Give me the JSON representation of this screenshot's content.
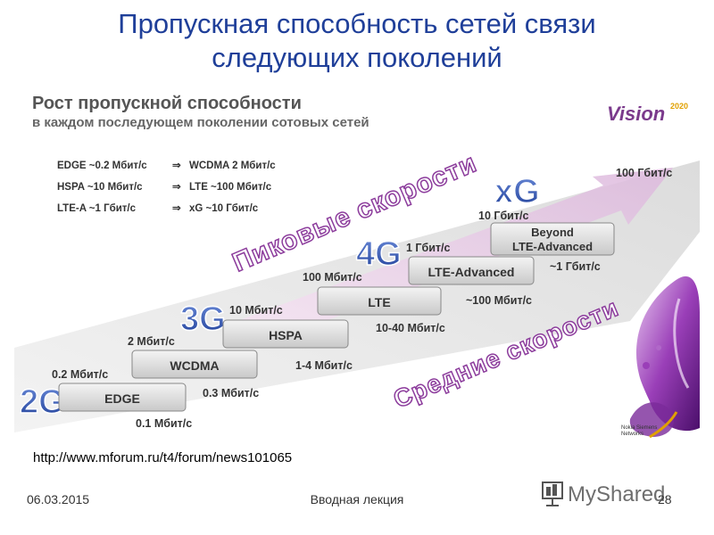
{
  "slide": {
    "title_line1": "Пропускная способность сетей связи",
    "title_line2": "следующих поколений",
    "url": "http://www.mforum.ru/t4/forum/news101065",
    "footer_date": "06.03.2015",
    "footer_center": "Вводная лекция",
    "page_number": "28",
    "watermark": "MyShared"
  },
  "diagram": {
    "header_line1": "Рост пропускной способности",
    "header_line2": "в каждом последующем поколении сотовых сетей",
    "vision_logo": "Vision",
    "vision_year": "2020",
    "nsn_logo_line1": "Nokia Siemens",
    "nsn_logo_line2": "Networks",
    "legend": [
      {
        "from": "EDGE ~0.2 Мбит/с",
        "to": "WCDMA 2 Мбит/с"
      },
      {
        "from": "HSPA ~10 Мбит/с",
        "to": "LTE ~100 Мбит/с"
      },
      {
        "from": "LTE-A ~1 Гбит/с",
        "to": "xG ~10 Гбит/с"
      }
    ],
    "legend_arrow": "⇒",
    "peak_label": "Пиковые скорости",
    "avg_label": "Средние скорости",
    "generations": [
      "2G",
      "3G",
      "4G",
      "xG"
    ],
    "steps": [
      {
        "tech": "EDGE",
        "peak": "0.2 Мбит/с",
        "avg": "0.1 Мбит/с"
      },
      {
        "tech": "WCDMA",
        "peak": "2 Мбит/с",
        "avg": "0.3 Мбит/с"
      },
      {
        "tech": "HSPA",
        "peak": "10 Мбит/с",
        "avg": "1-4 Мбит/с"
      },
      {
        "tech": "LTE",
        "peak": "100 Мбит/с",
        "avg": "10-40 Мбит/с"
      },
      {
        "tech": "LTE-Advanced",
        "peak": "1 Гбит/с",
        "avg": "~100 Мбит/с"
      },
      {
        "tech_line1": "Beyond",
        "tech_line2": "LTE-Advanced",
        "peak": "10 Гбит/с",
        "avg": "~1 Гбит/с"
      }
    ],
    "top_label": "100 Гбит/с"
  }
}
